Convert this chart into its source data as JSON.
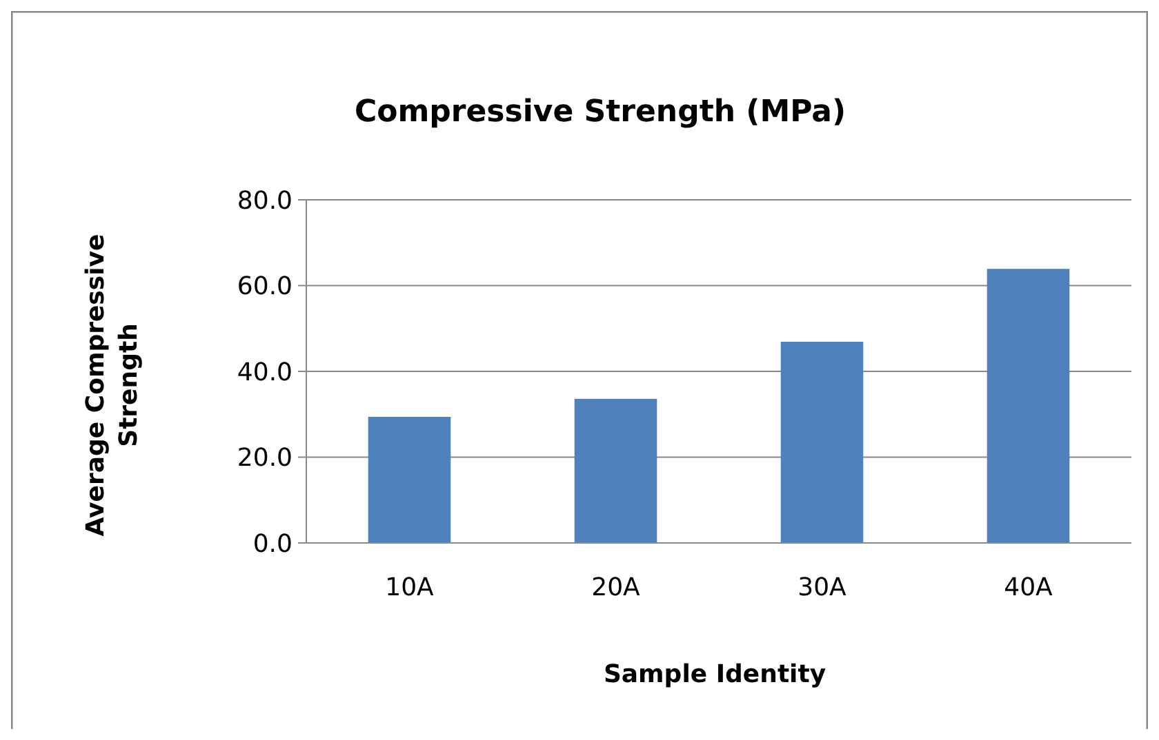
{
  "chart_data": {
    "type": "bar",
    "title": "Compressive Strength (MPa)",
    "xlabel": "Sample Identity",
    "ylabel": "Average Compressive Strength",
    "categories": [
      "10A",
      "20A",
      "30A",
      "40A"
    ],
    "values": [
      29.4,
      33.6,
      46.9,
      63.9
    ],
    "color": "#4f81bd",
    "ylim": [
      0,
      80
    ],
    "yticks": [
      {
        "value": 0,
        "label": "0.0"
      },
      {
        "value": 20,
        "label": "20.0"
      },
      {
        "value": 40,
        "label": "40.0"
      },
      {
        "value": 60,
        "label": "60.0"
      },
      {
        "value": 80,
        "label": "80.0"
      }
    ],
    "grid": "y"
  }
}
